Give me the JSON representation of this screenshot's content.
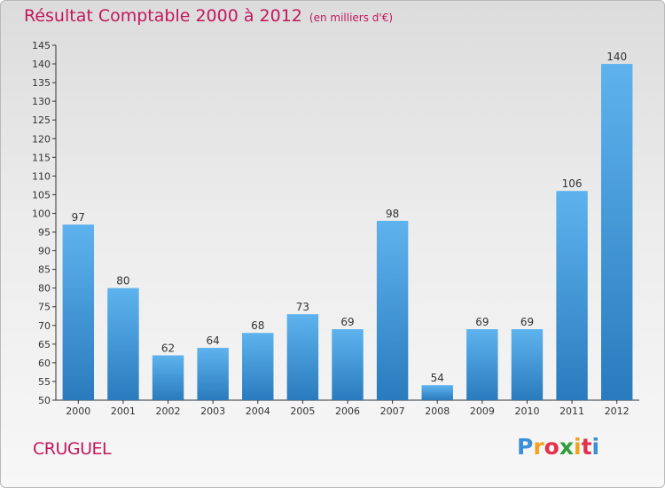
{
  "header": {
    "title": "Résultat Comptable 2000 à 2012",
    "subtitle": "(en milliers d'€)"
  },
  "footer": {
    "commune": "CRUGUEL",
    "logo": {
      "letters": [
        "P",
        "r",
        "o",
        "x",
        "i",
        "t",
        "i"
      ],
      "colors": [
        "#3a8fd6",
        "#f4a21b",
        "#e0324b",
        "#2e9e3a",
        "#f4a21b",
        "#e0324b",
        "#3a8fd6"
      ]
    }
  },
  "colors": {
    "bar_light": "#5eb3ee",
    "bar_dark": "#2a7bbd",
    "title": "#c2185b"
  },
  "chart_data": {
    "type": "bar",
    "title": "Résultat Comptable 2000 à 2012",
    "subtitle": "(en milliers d'€)",
    "categories": [
      "2000",
      "2001",
      "2002",
      "2003",
      "2004",
      "2005",
      "2006",
      "2007",
      "2008",
      "2009",
      "2010",
      "2011",
      "2012"
    ],
    "values": [
      97,
      80,
      62,
      64,
      68,
      73,
      69,
      98,
      54,
      69,
      69,
      106,
      140
    ],
    "ylim": [
      50,
      145
    ],
    "yticks": [
      50,
      55,
      60,
      65,
      70,
      75,
      80,
      85,
      90,
      95,
      100,
      105,
      110,
      115,
      120,
      125,
      130,
      135,
      140,
      145
    ],
    "grid": false,
    "data_labels": true
  }
}
